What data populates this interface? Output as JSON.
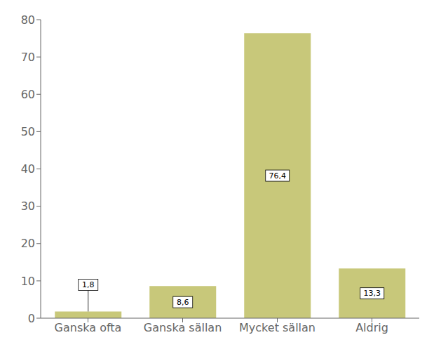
{
  "chart_data": {
    "type": "bar",
    "categories": [
      "Ganska ofta",
      "Ganska sällan",
      "Mycket sällan",
      "Aldrig"
    ],
    "values": [
      1.8,
      8.6,
      76.4,
      13.3
    ],
    "value_labels": [
      "1,8",
      "8,6",
      "76,4",
      "13,3"
    ],
    "data_labels": true,
    "color": "#C8C87A",
    "ylim": [
      0,
      80
    ],
    "yticks": [
      0,
      10,
      20,
      30,
      40,
      50,
      60,
      70,
      80
    ],
    "grid": false
  }
}
